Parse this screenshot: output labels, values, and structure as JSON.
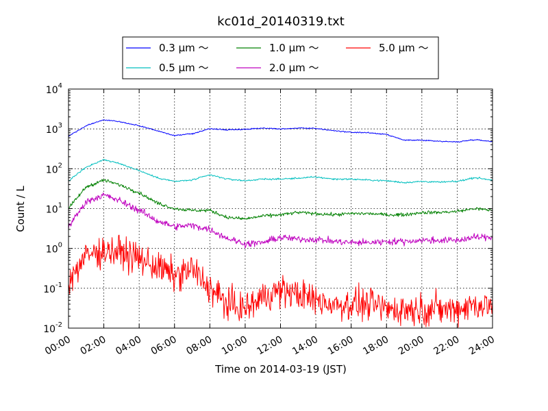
{
  "chart_data": {
    "type": "line",
    "title": "kc01d_20140319.txt",
    "xlabel": "Time on 2014-03-19 (JST)",
    "ylabel": "Count / L",
    "y_scale": "log",
    "ylim": [
      0.01,
      10000
    ],
    "xlim": [
      "00:00",
      "24:00"
    ],
    "x_tick_labels": [
      "00:00",
      "02:00",
      "04:00",
      "06:00",
      "08:00",
      "10:00",
      "12:00",
      "14:00",
      "16:00",
      "18:00",
      "20:00",
      "22:00",
      "24:00"
    ],
    "y_ticks": [
      {
        "value": 0.01,
        "base": "10",
        "exp": "-2"
      },
      {
        "value": 0.1,
        "base": "10",
        "exp": "-1"
      },
      {
        "value": 1,
        "base": "10",
        "exp": "0"
      },
      {
        "value": 10,
        "base": "10",
        "exp": "1"
      },
      {
        "value": 100,
        "base": "10",
        "exp": "2"
      },
      {
        "value": 1000,
        "base": "10",
        "exp": "3"
      },
      {
        "value": 10000,
        "base": "10",
        "exp": "4"
      }
    ],
    "grid": true,
    "legend_position": "top-center",
    "x": [
      "00:00",
      "01:00",
      "02:00",
      "03:00",
      "04:00",
      "05:00",
      "06:00",
      "07:00",
      "08:00",
      "09:00",
      "10:00",
      "11:00",
      "12:00",
      "13:00",
      "14:00",
      "15:00",
      "16:00",
      "17:00",
      "18:00",
      "19:00",
      "20:00",
      "21:00",
      "22:00",
      "23:00",
      "24:00"
    ],
    "series": [
      {
        "name": "0.3 μm ～",
        "color": "#0000ff",
        "noise": 0.01,
        "values": [
          650,
          1200,
          1700,
          1500,
          1200,
          900,
          680,
          760,
          1000,
          950,
          980,
          1050,
          1000,
          1050,
          1030,
          900,
          820,
          800,
          720,
          520,
          520,
          490,
          470,
          540,
          480
        ]
      },
      {
        "name": "0.5 μm ～",
        "color": "#00bfbf",
        "noise": 0.015,
        "values": [
          50,
          110,
          170,
          130,
          90,
          60,
          48,
          52,
          70,
          55,
          50,
          55,
          55,
          58,
          62,
          55,
          55,
          52,
          50,
          45,
          48,
          46,
          48,
          60,
          52
        ]
      },
      {
        "name": "1.0 μm ～",
        "color": "#008000",
        "noise": 0.03,
        "values": [
          10,
          35,
          52,
          38,
          25,
          14,
          10,
          9,
          9,
          6,
          5.5,
          6.5,
          7,
          8,
          7.5,
          7,
          7.5,
          7.5,
          7,
          7,
          8,
          8,
          8.5,
          10,
          9
        ]
      },
      {
        "name": "2.0 μm ～",
        "color": "#bf00bf",
        "noise": 0.06,
        "values": [
          3.5,
          15,
          22,
          15,
          9,
          5,
          3.5,
          3.8,
          3,
          1.8,
          1.3,
          1.4,
          1.9,
          1.7,
          1.7,
          1.5,
          1.4,
          1.4,
          1.5,
          1.5,
          1.6,
          1.6,
          1.6,
          1.9,
          1.9
        ]
      },
      {
        "name": "5.0 μm ～",
        "color": "#ff0000",
        "noise": 0.28,
        "values": [
          0.15,
          0.65,
          0.9,
          0.8,
          0.55,
          0.35,
          0.2,
          0.3,
          0.1,
          0.04,
          0.03,
          0.06,
          0.09,
          0.07,
          0.05,
          0.04,
          0.04,
          0.04,
          0.03,
          0.03,
          0.03,
          0.03,
          0.03,
          0.04,
          0.035
        ]
      }
    ]
  }
}
